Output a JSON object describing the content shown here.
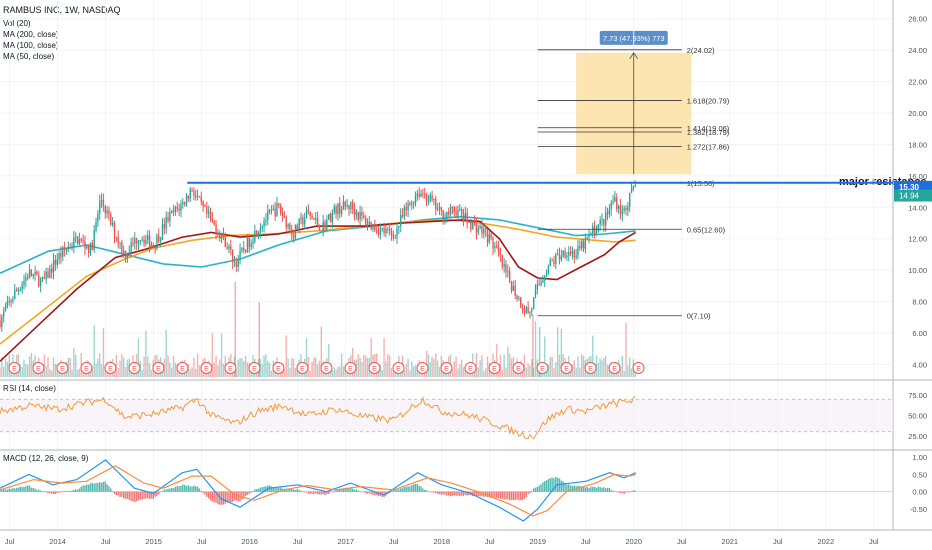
{
  "header": {
    "title": "RAMBUS INC, 1W, NASDAQ",
    "indicators": [
      "Vol (20)",
      "MA (200, close)",
      "MA (100, close)",
      "MA (50, close)"
    ],
    "rsi_label": "RSI (14, close)",
    "macd_label": "MACD (12, 26, close, 9)"
  },
  "colors": {
    "up": "#26a69a",
    "down": "#ef5350",
    "ma200": "#26b3c6",
    "ma100": "#a31515",
    "ma50": "#f4a623",
    "resistance": "#1e6fd9",
    "rsi": "#f29c38",
    "macd": "#2196f3",
    "signal": "#ff8a3d",
    "target_fill": "#fbe0a3",
    "badge": "#5b8fc9"
  },
  "annotations": {
    "resistance_label": "major resistance",
    "measure_badge": "7.73 (47.93%) 773",
    "price_current": "15.30",
    "price_prev": "14.94",
    "earnings_marker": "E"
  },
  "chart_data": {
    "type": "candlestick",
    "title": "RAMBUS INC, 1W, NASDAQ",
    "price_axis": {
      "ticks": [
        "26.00",
        "24.00",
        "22.00",
        "20.00",
        "18.00",
        "16.00",
        "14.00",
        "12.00",
        "10.00",
        "8.00",
        "6.00",
        "4.00"
      ],
      "ylim": [
        3.2,
        27
      ]
    },
    "time_axis": {
      "labels": [
        "Jul",
        "2014",
        "Jul",
        "2015",
        "Jul",
        "2016",
        "Jul",
        "2017",
        "Jul",
        "2018",
        "Jul",
        "2019",
        "Jul",
        "2020",
        "Jul",
        "2021",
        "Jul",
        "2022",
        "Jul"
      ],
      "xlim": [
        2013.4,
        2022.7
      ],
      "label_x": [
        2013.5,
        2014.0,
        2014.5,
        2015.0,
        2015.5,
        2016.0,
        2016.5,
        2017.0,
        2017.5,
        2018.0,
        2018.5,
        2019.0,
        2019.5,
        2020.0,
        2020.5,
        2021.0,
        2021.5,
        2022.0,
        2022.5
      ]
    },
    "price_path": [
      [
        2013.4,
        6.8
      ],
      [
        2013.55,
        8.5
      ],
      [
        2013.7,
        9.8
      ],
      [
        2013.85,
        9.2
      ],
      [
        2014.0,
        10.8
      ],
      [
        2014.2,
        12.0
      ],
      [
        2014.35,
        11.3
      ],
      [
        2014.45,
        14.6
      ],
      [
        2014.55,
        13.0
      ],
      [
        2014.7,
        11.0
      ],
      [
        2014.85,
        12.2
      ],
      [
        2015.0,
        11.6
      ],
      [
        2015.15,
        13.3
      ],
      [
        2015.3,
        14.2
      ],
      [
        2015.4,
        15.2
      ],
      [
        2015.5,
        14.0
      ],
      [
        2015.6,
        13.1
      ],
      [
        2015.75,
        11.8
      ],
      [
        2015.85,
        10.4
      ],
      [
        2016.0,
        11.9
      ],
      [
        2016.15,
        13.2
      ],
      [
        2016.3,
        14.0
      ],
      [
        2016.45,
        12.3
      ],
      [
        2016.6,
        13.6
      ],
      [
        2016.75,
        12.7
      ],
      [
        2016.9,
        13.9
      ],
      [
        2017.05,
        14.1
      ],
      [
        2017.2,
        13.1
      ],
      [
        2017.35,
        12.6
      ],
      [
        2017.5,
        12.2
      ],
      [
        2017.6,
        13.5
      ],
      [
        2017.75,
        15.0
      ],
      [
        2017.85,
        14.7
      ],
      [
        2018.0,
        13.5
      ],
      [
        2018.15,
        13.8
      ],
      [
        2018.3,
        13.0
      ],
      [
        2018.45,
        12.4
      ],
      [
        2018.55,
        11.5
      ],
      [
        2018.65,
        10.0
      ],
      [
        2018.75,
        8.8
      ],
      [
        2018.85,
        7.6
      ],
      [
        2018.92,
        7.3
      ],
      [
        2019.0,
        8.9
      ],
      [
        2019.1,
        10.2
      ],
      [
        2019.2,
        10.8
      ],
      [
        2019.3,
        11.3
      ],
      [
        2019.4,
        11.0
      ],
      [
        2019.5,
        11.8
      ],
      [
        2019.6,
        12.7
      ],
      [
        2019.7,
        13.2
      ],
      [
        2019.8,
        14.6
      ],
      [
        2019.88,
        13.6
      ],
      [
        2019.95,
        14.5
      ],
      [
        2020.02,
        15.3
      ]
    ],
    "ma200": [
      [
        2013.4,
        5.3
      ],
      [
        2013.8,
        7.2
      ],
      [
        2014.3,
        9.6
      ],
      [
        2014.7,
        10.7
      ],
      [
        2015.0,
        11.4
      ],
      [
        2015.4,
        11.9
      ],
      [
        2015.8,
        12.2
      ],
      [
        2016.2,
        12.3
      ],
      [
        2016.7,
        12.5
      ],
      [
        2017.2,
        12.8
      ],
      [
        2017.7,
        13.1
      ],
      [
        2018.1,
        13.2
      ],
      [
        2018.4,
        13.0
      ],
      [
        2018.8,
        12.6
      ],
      [
        2019.2,
        12.1
      ],
      [
        2019.6,
        11.9
      ],
      [
        2019.8,
        11.8
      ],
      [
        2020.02,
        11.9
      ]
    ],
    "ma100": [
      [
        2013.4,
        9.8
      ],
      [
        2013.9,
        11.2
      ],
      [
        2014.3,
        11.6
      ],
      [
        2014.7,
        11.0
      ],
      [
        2015.1,
        10.4
      ],
      [
        2015.5,
        10.2
      ],
      [
        2015.9,
        10.7
      ],
      [
        2016.3,
        11.6
      ],
      [
        2016.8,
        12.5
      ],
      [
        2017.3,
        12.8
      ],
      [
        2017.8,
        13.2
      ],
      [
        2018.2,
        13.4
      ],
      [
        2018.6,
        13.2
      ],
      [
        2019.0,
        12.7
      ],
      [
        2019.4,
        12.2
      ],
      [
        2019.7,
        12.3
      ],
      [
        2020.02,
        12.5
      ]
    ],
    "ma50": [
      [
        2013.4,
        4.2
      ],
      [
        2013.8,
        6.5
      ],
      [
        2014.2,
        8.8
      ],
      [
        2014.6,
        10.8
      ],
      [
        2014.9,
        11.3
      ],
      [
        2015.3,
        12.1
      ],
      [
        2015.6,
        12.4
      ],
      [
        2015.9,
        12.1
      ],
      [
        2016.3,
        12.3
      ],
      [
        2016.7,
        12.8
      ],
      [
        2017.2,
        12.8
      ],
      [
        2017.6,
        13.0
      ],
      [
        2017.9,
        13.1
      ],
      [
        2018.2,
        13.2
      ],
      [
        2018.4,
        13.1
      ],
      [
        2018.6,
        12.0
      ],
      [
        2018.8,
        10.2
      ],
      [
        2019.0,
        9.5
      ],
      [
        2019.2,
        9.4
      ],
      [
        2019.45,
        10.2
      ],
      [
        2019.7,
        11.0
      ],
      [
        2019.85,
        11.8
      ],
      [
        2020.02,
        12.4
      ]
    ],
    "resistance": {
      "y": 15.56,
      "x": [
        2015.35,
        2022.7
      ],
      "label": "major resistance"
    },
    "fibonacci": {
      "x": [
        2019.0,
        2020.5
      ],
      "levels": [
        {
          "ratio": "0",
          "value": 7.1,
          "label": "0(7.10)"
        },
        {
          "ratio": "0.65",
          "value": 12.6,
          "label": "0.65(12.60)"
        },
        {
          "ratio": "1",
          "value": 15.56,
          "label": "1(15.56)"
        },
        {
          "ratio": "1.272",
          "value": 17.86,
          "label": "1.272(17.86)"
        },
        {
          "ratio": "1.382",
          "value": 18.79,
          "label": "1.382(18.79)"
        },
        {
          "ratio": "1.414",
          "value": 19.06,
          "label": "1.414(19.06)"
        },
        {
          "ratio": "1.618",
          "value": 20.79,
          "label": "1.618(20.79)"
        },
        {
          "ratio": "2",
          "value": 24.02,
          "label": "2(24.02)"
        }
      ]
    },
    "target_box": {
      "x": [
        2019.4,
        2020.6
      ],
      "y": [
        16.1,
        23.83
      ],
      "change": "7.73 (47.93%) 773"
    },
    "rsi": {
      "ticks": [
        "75.00",
        "50.00",
        "25.00"
      ],
      "levels": [
        70,
        30
      ],
      "path": [
        [
          2013.4,
          55
        ],
        [
          2013.7,
          62
        ],
        [
          2014.0,
          58
        ],
        [
          2014.3,
          66
        ],
        [
          2014.5,
          70
        ],
        [
          2014.7,
          48
        ],
        [
          2015.0,
          52
        ],
        [
          2015.3,
          60
        ],
        [
          2015.45,
          70
        ],
        [
          2015.6,
          50
        ],
        [
          2015.85,
          40
        ],
        [
          2016.1,
          56
        ],
        [
          2016.35,
          62
        ],
        [
          2016.6,
          50
        ],
        [
          2016.9,
          58
        ],
        [
          2017.2,
          48
        ],
        [
          2017.5,
          44
        ],
        [
          2017.8,
          70
        ],
        [
          2018.0,
          55
        ],
        [
          2018.3,
          50
        ],
        [
          2018.6,
          38
        ],
        [
          2018.8,
          28
        ],
        [
          2018.95,
          24
        ],
        [
          2019.1,
          45
        ],
        [
          2019.3,
          58
        ],
        [
          2019.5,
          55
        ],
        [
          2019.7,
          62
        ],
        [
          2019.85,
          66
        ],
        [
          2020.02,
          70
        ]
      ]
    },
    "macd": {
      "ticks": [
        "1.00",
        "0.50",
        "0.00",
        "-0.50"
      ],
      "macd_path": [
        [
          2013.4,
          0.1
        ],
        [
          2013.7,
          0.5
        ],
        [
          2013.95,
          0.2
        ],
        [
          2014.2,
          0.35
        ],
        [
          2014.5,
          0.92
        ],
        [
          2014.8,
          0.1
        ],
        [
          2015.0,
          -0.05
        ],
        [
          2015.3,
          0.55
        ],
        [
          2015.45,
          0.65
        ],
        [
          2015.7,
          -0.2
        ],
        [
          2015.9,
          -0.45
        ],
        [
          2016.2,
          0.1
        ],
        [
          2016.5,
          0.2
        ],
        [
          2016.8,
          0.0
        ],
        [
          2017.05,
          0.25
        ],
        [
          2017.4,
          -0.1
        ],
        [
          2017.75,
          0.55
        ],
        [
          2018.0,
          0.2
        ],
        [
          2018.3,
          -0.05
        ],
        [
          2018.6,
          -0.45
        ],
        [
          2018.85,
          -0.85
        ],
        [
          2019.0,
          -0.5
        ],
        [
          2019.2,
          0.2
        ],
        [
          2019.5,
          0.3
        ],
        [
          2019.75,
          0.55
        ],
        [
          2019.9,
          0.4
        ],
        [
          2020.02,
          0.55
        ]
      ],
      "signal_path": [
        [
          2013.4,
          0.05
        ],
        [
          2013.75,
          0.35
        ],
        [
          2014.05,
          0.25
        ],
        [
          2014.3,
          0.3
        ],
        [
          2014.6,
          0.75
        ],
        [
          2014.9,
          0.25
        ],
        [
          2015.1,
          0.1
        ],
        [
          2015.4,
          0.45
        ],
        [
          2015.6,
          0.45
        ],
        [
          2015.85,
          -0.1
        ],
        [
          2016.05,
          -0.25
        ],
        [
          2016.35,
          0.05
        ],
        [
          2016.6,
          0.18
        ],
        [
          2016.9,
          0.05
        ],
        [
          2017.15,
          0.15
        ],
        [
          2017.5,
          0.05
        ],
        [
          2017.85,
          0.4
        ],
        [
          2018.1,
          0.25
        ],
        [
          2018.4,
          -0.02
        ],
        [
          2018.7,
          -0.35
        ],
        [
          2018.95,
          -0.7
        ],
        [
          2019.1,
          -0.55
        ],
        [
          2019.3,
          0.0
        ],
        [
          2019.6,
          0.25
        ],
        [
          2019.8,
          0.5
        ],
        [
          2019.95,
          0.45
        ],
        [
          2020.02,
          0.5
        ]
      ]
    },
    "earnings_dates": [
      2013.55,
      2013.8,
      2014.05,
      2014.3,
      2014.55,
      2014.8,
      2015.05,
      2015.3,
      2015.55,
      2015.8,
      2016.05,
      2016.3,
      2016.55,
      2016.8,
      2017.05,
      2017.3,
      2017.55,
      2017.8,
      2018.05,
      2018.3,
      2018.55,
      2018.8,
      2019.05,
      2019.3,
      2019.55,
      2019.8,
      2020.05
    ]
  }
}
